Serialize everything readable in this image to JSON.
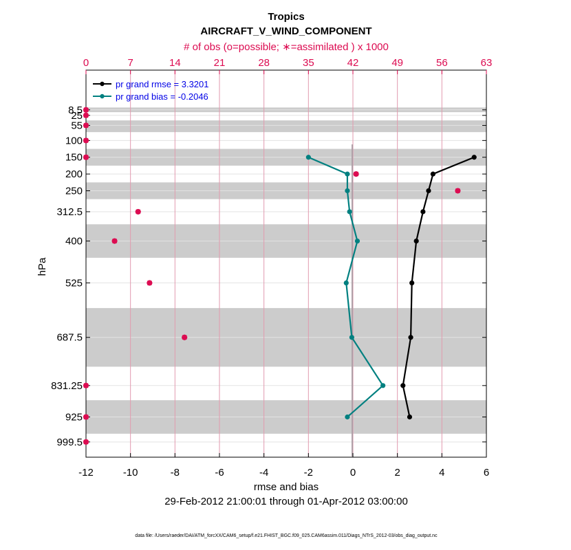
{
  "chart_data": {
    "type": "line",
    "title": "Tropics",
    "subtitle": "AIRCRAFT_V_WIND_COMPONENT",
    "top_axis_label": "# of obs (o=possible; ∗=assimilated ) x 1000",
    "xlabel": "rmse and bias",
    "ylabel": "hPa",
    "date_range": "29-Feb-2012 21:00:01 through 01-Apr-2012 03:00:00",
    "footnote": "data file: /Users/raeder/DAI/ATM_forcXX/CAM6_setup/f.e21.FHIST_BGC.f09_025.CAM6assim.011/Diags_NTrS_2012-03/obs_diag_output.nc",
    "xlim": [
      -12,
      6
    ],
    "x_ticks": [
      -12,
      -10,
      -8,
      -6,
      -4,
      -2,
      0,
      2,
      4,
      6
    ],
    "top_xlim": [
      0,
      63
    ],
    "top_ticks": [
      0,
      7,
      14,
      21,
      28,
      35,
      42,
      49,
      56,
      63
    ],
    "ylim": [
      1045,
      -110
    ],
    "levels": [
      8.5,
      25,
      55,
      100,
      150,
      200,
      250,
      312.5,
      400,
      525,
      687.5,
      831.25,
      925,
      999.5
    ],
    "level_labels": [
      "8.5",
      "25",
      "55",
      "100",
      "150",
      "200",
      "250",
      "312.5",
      "400",
      "525",
      "687.5",
      "831.25",
      "925",
      "999.5"
    ],
    "bands": [
      [
        1.5,
        15.5
      ],
      [
        40,
        75
      ],
      [
        125,
        175
      ],
      [
        225,
        275
      ],
      [
        350,
        450
      ],
      [
        600,
        775
      ],
      [
        875,
        975
      ]
    ],
    "series": [
      {
        "name": "pr grand rmse",
        "legend": "pr grand rmse = 3.3201",
        "color": "#000000",
        "levels": [
          150,
          200,
          250,
          312.5,
          400,
          525,
          687.5,
          831.25,
          925
        ],
        "values": [
          5.45,
          3.6,
          3.4,
          3.15,
          2.85,
          2.65,
          2.6,
          2.25,
          2.55
        ]
      },
      {
        "name": "pr grand bias",
        "legend": "pr grand bias = -0.2046",
        "color": "#008080",
        "levels": [
          150,
          200,
          250,
          312.5,
          400,
          525,
          687.5,
          831.25,
          925
        ],
        "values": [
          -2.0,
          -0.25,
          -0.25,
          -0.15,
          0.2,
          -0.3,
          -0.05,
          1.35,
          -0.25
        ]
      }
    ],
    "obs_possible": {
      "color": "#dc0a50",
      "levels": [
        8.5,
        25,
        55,
        100,
        150,
        200,
        250,
        312.5,
        400,
        525,
        687.5,
        831.25,
        925,
        999.5
      ],
      "values": [
        0,
        0,
        0,
        0,
        0,
        42.5,
        58.5,
        8.2,
        4.5,
        10.0,
        15.5,
        0,
        0,
        0
      ]
    },
    "obs_assimilated": {
      "color": "#dc0a50",
      "levels": [
        8.5,
        25,
        55,
        100,
        150,
        200,
        250,
        312.5,
        400,
        525,
        687.5,
        831.25,
        925,
        999.5
      ],
      "values": [
        0,
        0,
        0,
        0,
        0,
        42.5,
        58.5,
        8.2,
        4.5,
        10.0,
        15.5,
        0,
        0,
        0
      ]
    }
  }
}
